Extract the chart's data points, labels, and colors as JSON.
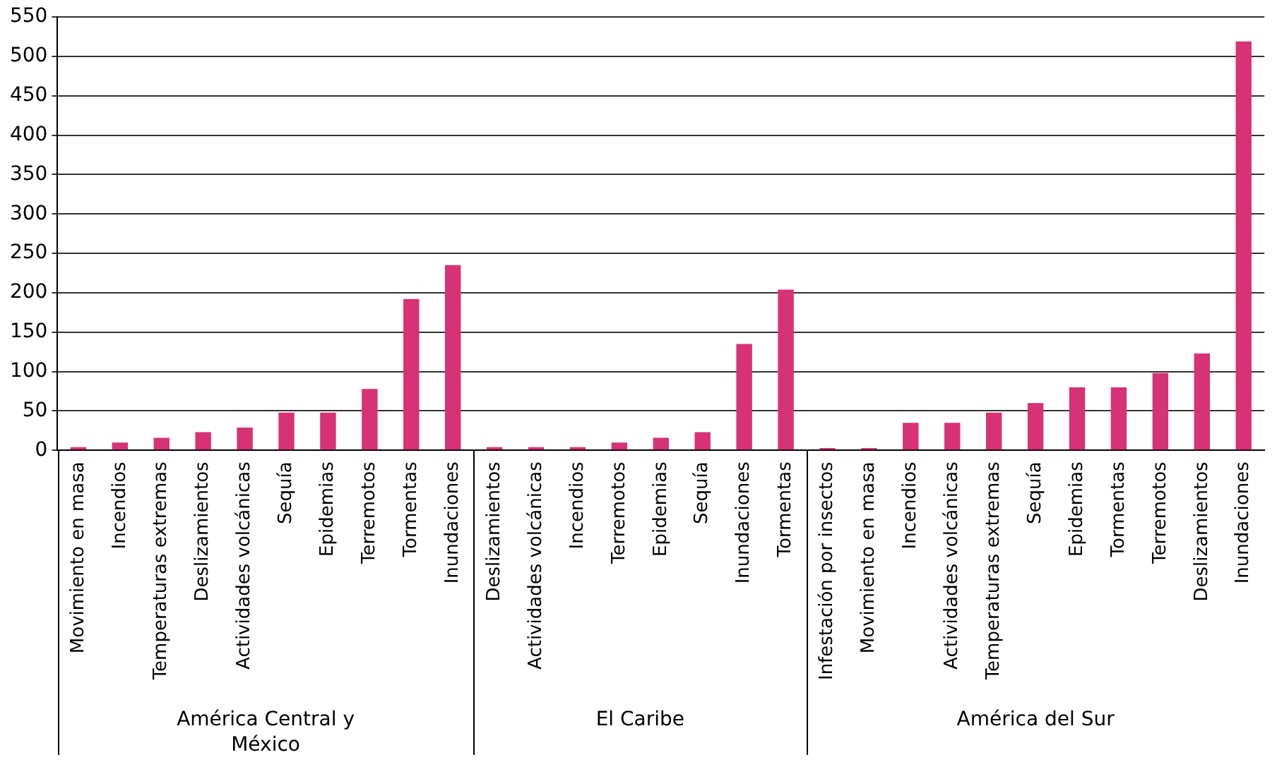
{
  "chart_data": {
    "type": "bar",
    "categories": [
      "Movimiento en masa",
      "Incendios",
      "Temperaturas extremas",
      "Deslizamientos",
      "Actividades volcánicas",
      "Sequía",
      "Epidemias",
      "Terremotos",
      "Tormentas",
      "Inundaciones",
      "Deslizamientos",
      "Actividades volcánicas",
      "Incendios",
      "Terremotos",
      "Epidemias",
      "Sequía",
      "Inundaciones",
      "Tormentas",
      "Infestación por insectos",
      "Movimiento en masa",
      "Incendios",
      "Actividades volcánicas",
      "Temperaturas extremas",
      "Sequía",
      "Epidemias",
      "Tormentas",
      "Terremotos",
      "Deslizamientos",
      "Inundaciones"
    ],
    "values": [
      4,
      10,
      16,
      23,
      29,
      48,
      48,
      78,
      192,
      235,
      4,
      4,
      4,
      10,
      16,
      23,
      135,
      204,
      3,
      3,
      35,
      35,
      48,
      60,
      80,
      80,
      98,
      123,
      519
    ],
    "color": "#d63275",
    "ylim": [
      0,
      550
    ],
    "yticks": [
      0,
      50,
      100,
      150,
      200,
      250,
      300,
      350,
      400,
      450,
      500,
      550
    ],
    "grid": "y",
    "legend": false,
    "annotations": [
      "América Central y México",
      "El Caribe",
      "América del Sur"
    ]
  }
}
